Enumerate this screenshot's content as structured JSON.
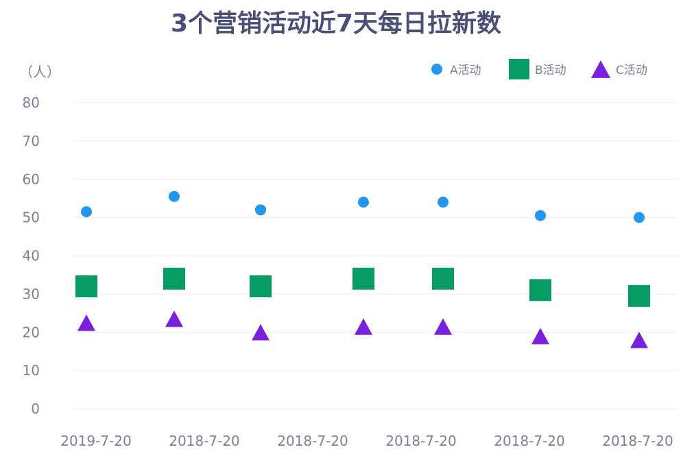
{
  "chart_data": {
    "type": "scatter",
    "title": "3个营销活动近7天每日拉新数",
    "ylabel": "（人）",
    "xlabel": "",
    "ylim": [
      0,
      80
    ],
    "yticks": [
      0,
      10,
      20,
      30,
      40,
      50,
      60,
      70,
      80
    ],
    "grid": true,
    "legend_position": "top-right",
    "x_tick_labels": [
      "2019-7-20",
      "2018-7-20",
      "2018-7-20",
      "2018-7-20",
      "2018-7-20",
      "2018-7-20"
    ],
    "series": [
      {
        "name": "A活动",
        "marker": "circle",
        "color": "#2196f3",
        "values": [
          51.5,
          55.5,
          52,
          54,
          54,
          50.5,
          50
        ]
      },
      {
        "name": "B活动",
        "marker": "square",
        "color": "#079c63",
        "values": [
          32,
          34,
          32,
          34,
          34,
          31,
          29.5
        ]
      },
      {
        "name": "C活动",
        "marker": "triangle",
        "color": "#7a1fe0",
        "values": [
          22.5,
          23.5,
          20,
          21.5,
          21.5,
          19,
          18
        ]
      }
    ]
  }
}
